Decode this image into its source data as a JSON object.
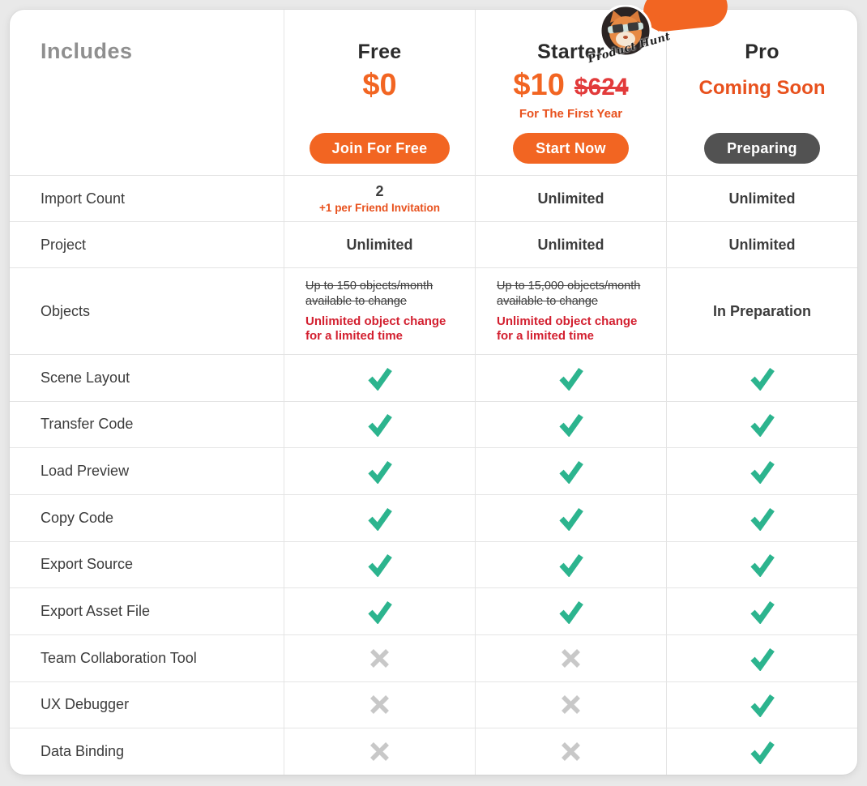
{
  "colors": {
    "page_bg": "#E9E9E9",
    "accent_orange": "#F26522",
    "note_orange_red": "#E8511D",
    "old_price_red": "#E23B3B",
    "highlight_red": "#D32030",
    "check_teal": "#2CB48E",
    "cross_gray": "#C8C8C8",
    "preparing_gray": "#525252",
    "plan_name_dark": "#2B2B2B",
    "label_dark": "#3B3B3B",
    "includes_gray": "#8F8F8F"
  },
  "header": {
    "includes_label": "Includes",
    "plans": [
      {
        "name": "Free",
        "price": "$0",
        "button_label": "Join For Free"
      },
      {
        "name": "Starter",
        "price": "$10",
        "old_price": "$624",
        "price_note": "For The First Year",
        "button_label": "Start Now"
      },
      {
        "name": "Pro",
        "status": "Coming Soon",
        "button_label": "Preparing"
      }
    ]
  },
  "badge": {
    "icon": "cat-avatar-icon",
    "signature": "Product Hunt"
  },
  "features": [
    {
      "label": "Import Count",
      "cells": [
        {
          "type": "text",
          "main": "2",
          "sub": "+1 per Friend Invitation"
        },
        {
          "type": "text",
          "main": "Unlimited"
        },
        {
          "type": "text",
          "main": "Unlimited"
        }
      ]
    },
    {
      "label": "Project",
      "cells": [
        {
          "type": "text",
          "main": "Unlimited"
        },
        {
          "type": "text",
          "main": "Unlimited"
        },
        {
          "type": "text",
          "main": "Unlimited"
        }
      ]
    },
    {
      "label": "Objects",
      "tall": true,
      "cells": [
        {
          "type": "rich",
          "strike": "Up to 150 objects/month available to change",
          "highlight": "Unlimited object change for a limited time"
        },
        {
          "type": "rich",
          "strike": "Up to 15,000 objects/month available to change",
          "highlight": "Unlimited object change for a limited time"
        },
        {
          "type": "text",
          "main": "In Preparation"
        }
      ]
    },
    {
      "label": "Scene Layout",
      "cells": [
        {
          "type": "check"
        },
        {
          "type": "check"
        },
        {
          "type": "check"
        }
      ]
    },
    {
      "label": "Transfer Code",
      "cells": [
        {
          "type": "check"
        },
        {
          "type": "check"
        },
        {
          "type": "check"
        }
      ]
    },
    {
      "label": "Load Preview",
      "cells": [
        {
          "type": "check"
        },
        {
          "type": "check"
        },
        {
          "type": "check"
        }
      ]
    },
    {
      "label": "Copy Code",
      "cells": [
        {
          "type": "check"
        },
        {
          "type": "check"
        },
        {
          "type": "check"
        }
      ]
    },
    {
      "label": "Export Source",
      "cells": [
        {
          "type": "check"
        },
        {
          "type": "check"
        },
        {
          "type": "check"
        }
      ]
    },
    {
      "label": "Export Asset File",
      "cells": [
        {
          "type": "check"
        },
        {
          "type": "check"
        },
        {
          "type": "check"
        }
      ]
    },
    {
      "label": "Team Collaboration Tool",
      "cells": [
        {
          "type": "cross"
        },
        {
          "type": "cross"
        },
        {
          "type": "check"
        }
      ]
    },
    {
      "label": "UX Debugger",
      "cells": [
        {
          "type": "cross"
        },
        {
          "type": "cross"
        },
        {
          "type": "check"
        }
      ]
    },
    {
      "label": "Data Binding",
      "cells": [
        {
          "type": "cross"
        },
        {
          "type": "cross"
        },
        {
          "type": "check"
        }
      ]
    }
  ]
}
